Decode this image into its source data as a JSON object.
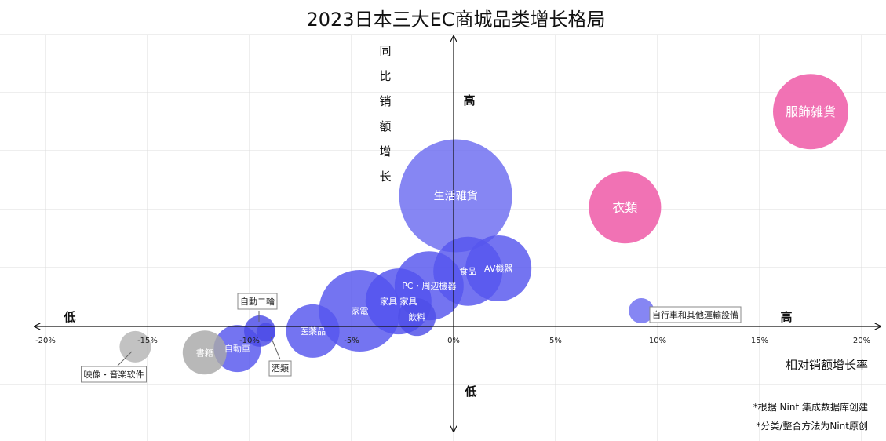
{
  "chart_data": {
    "type": "bubble",
    "title": "2023日本三大EC商城品类增长格局",
    "xlabel": "相对销额增长率",
    "ylabel": "同比销额增长",
    "xlim": [
      -0.2,
      0.2
    ],
    "x_ticks": [
      "-20%",
      "-15%",
      "-10%",
      "-5%",
      "0%",
      "5%",
      "10%",
      "15%",
      "20%"
    ],
    "quadrant_labels": {
      "x_low": "低",
      "x_high": "高",
      "y_high": "高",
      "y_low": "低"
    },
    "grid": true,
    "points": [
      {
        "label": "服飾雑貨",
        "x": 0.175,
        "y": 3.7,
        "size": 48,
        "color": "#f06ab0",
        "label_pos": "inside"
      },
      {
        "label": "衣類",
        "x": 0.084,
        "y": 2.05,
        "size": 46,
        "color": "#f06ab0",
        "label_pos": "inside"
      },
      {
        "label": "生活雑貨",
        "x": 0.001,
        "y": 2.25,
        "size": 72,
        "color": "#6b6bf0",
        "label_pos": "inside"
      },
      {
        "label": "AV機器",
        "x": 0.022,
        "y": 1.0,
        "size": 42,
        "color": "#5656ee",
        "label_pos": "inside"
      },
      {
        "label": "食品",
        "x": 0.007,
        "y": 0.95,
        "size": 44,
        "color": "#5656ee",
        "label_pos": "inside"
      },
      {
        "label": "PC・周辺機器",
        "x": -0.012,
        "y": 0.7,
        "size": 44,
        "color": "#5656ee",
        "label_pos": "inside"
      },
      {
        "label": "家具 家具",
        "x": -0.027,
        "y": 0.43,
        "size": 42,
        "color": "#5252ee",
        "label_pos": "inside"
      },
      {
        "label": "飲料",
        "x": -0.018,
        "y": 0.16,
        "size": 24,
        "color": "#4e4ee8",
        "label_pos": "inside"
      },
      {
        "label": "家電",
        "x": -0.046,
        "y": 0.27,
        "size": 52,
        "color": "#5656ee",
        "label_pos": "inside"
      },
      {
        "label": "医薬品",
        "x": -0.069,
        "y": -0.08,
        "size": 34,
        "color": "#5656ee",
        "label_pos": "inside"
      },
      {
        "label": "自動二輪",
        "x": -0.095,
        "y": -0.08,
        "size": 20,
        "color": "#4a4ae6",
        "label_pos": "callout",
        "callout_text": "自動二輪",
        "callout_box": true
      },
      {
        "label": "酒類",
        "x": -0.092,
        "y": -0.1,
        "size": 12,
        "color": "#4a4ae6",
        "label_pos": "callout",
        "callout_text": "酒類",
        "callout_box": true
      },
      {
        "label": "自動車",
        "x": -0.106,
        "y": -0.38,
        "size": 30,
        "color": "#5656ee",
        "label_pos": "inside"
      },
      {
        "label": "書籍",
        "x": -0.122,
        "y": -0.45,
        "size": 28,
        "color": "#a8a8a8",
        "label_pos": "inside"
      },
      {
        "label": "映像・音楽软件",
        "x": -0.156,
        "y": -0.35,
        "size": 20,
        "color": "#b5b5b5",
        "label_pos": "callout",
        "callout_text": "映像・音楽软件",
        "callout_box": true
      },
      {
        "label": "自行車和其他運輸設備",
        "x": 0.092,
        "y": 0.27,
        "size": 16,
        "color": "#6b6bf0",
        "label_pos": "callout",
        "callout_text": "自行車和其他運輸設備",
        "callout_box": true
      }
    ],
    "footnotes": [
      "*根据 Nint 集成数据库创建",
      "*分类/整合方法为Nint原创"
    ]
  }
}
